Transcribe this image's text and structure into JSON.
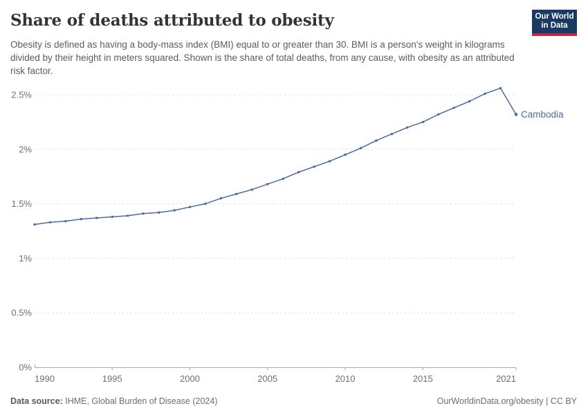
{
  "header": {
    "title": "Share of deaths attributed to obesity",
    "subtitle": "Obesity is defined as having a body-mass index (BMI) equal to or greater than 30. BMI is a person's weight in kilograms divided by their height in meters squared. Shown is the share of total deaths, from any cause, with obesity as an attributed risk factor.",
    "logo": {
      "line1": "Our World",
      "line2": "in Data"
    }
  },
  "chart_data": {
    "type": "line",
    "title": "Share of deaths attributed to obesity",
    "entity": "Cambodia",
    "unit": "%",
    "grid": true,
    "legend_position": "end-of-line",
    "line_color": "#4C6A9C",
    "xlim": [
      1990,
      2021
    ],
    "ylim": [
      0,
      2.6
    ],
    "x_ticks": [
      1990,
      1995,
      2000,
      2005,
      2010,
      2015,
      2021
    ],
    "y_ticks": [
      0,
      0.5,
      1,
      1.5,
      2,
      2.5
    ],
    "y_tick_labels": [
      "0%",
      "0.5%",
      "1%",
      "1.5%",
      "2%",
      "2.5%"
    ],
    "x": [
      1990,
      1991,
      1992,
      1993,
      1994,
      1995,
      1996,
      1997,
      1998,
      1999,
      2000,
      2001,
      2002,
      2003,
      2004,
      2005,
      2006,
      2007,
      2008,
      2009,
      2010,
      2011,
      2012,
      2013,
      2014,
      2015,
      2016,
      2017,
      2018,
      2019,
      2020,
      2021
    ],
    "series": [
      {
        "name": "Cambodia",
        "values": [
          1.31,
          1.33,
          1.34,
          1.36,
          1.37,
          1.38,
          1.39,
          1.41,
          1.42,
          1.44,
          1.47,
          1.5,
          1.55,
          1.59,
          1.63,
          1.68,
          1.73,
          1.79,
          1.84,
          1.89,
          1.95,
          2.01,
          2.08,
          2.14,
          2.2,
          2.25,
          2.32,
          2.38,
          2.44,
          2.51,
          2.56,
          2.32
        ]
      }
    ]
  },
  "footer": {
    "source_label": "Data source:",
    "source_text": "IHME, Global Burden of Disease (2024)",
    "credit": "OurWorldinData.org/obesity | CC BY"
  },
  "colors": {
    "line": "#4C6A9C",
    "logo_background": "#1a3a63",
    "logo_bar": "#c52438",
    "gridline": "#dcdcdc",
    "axis": "#a9a9a9",
    "title_text": "#333333",
    "subtitle_text": "#5b5b5b",
    "tick_text": "#6f6f6f",
    "footer_text": "#6e6e6e"
  }
}
